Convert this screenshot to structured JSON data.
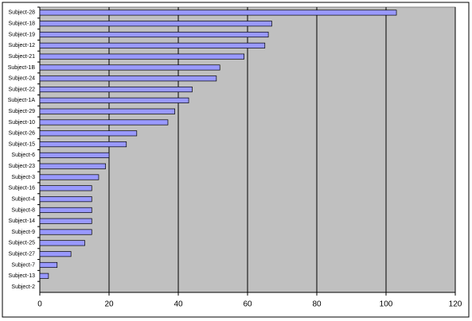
{
  "chart_data": {
    "type": "barh",
    "categories": [
      "Subject-28",
      "Subject-18",
      "Subject-19",
      "Subject-12",
      "Subject-21",
      "Subject-1B",
      "Subject-24",
      "Subject-22",
      "Subject-1A",
      "Subject-29",
      "Subject-10",
      "Subject-26",
      "Subject-15",
      "Subject-6",
      "Subject-23",
      "Subject-3",
      "Subject-16",
      "Subject-4",
      "Subject-8",
      "Subject-14",
      "Subject-9",
      "Subject-25",
      "Subject-27",
      "Subject-7",
      "Subject-13",
      "Subject-2"
    ],
    "values": [
      103,
      67,
      66,
      65,
      59,
      52,
      51,
      44,
      43,
      39,
      37,
      28,
      25,
      20,
      19,
      17,
      15,
      15,
      15,
      15,
      15,
      13,
      9,
      5,
      2.5,
      0
    ],
    "color": "#9999ff",
    "xlim": [
      0,
      120
    ],
    "xticks": [
      0,
      20,
      40,
      60,
      80,
      100,
      120
    ],
    "grid": true
  }
}
